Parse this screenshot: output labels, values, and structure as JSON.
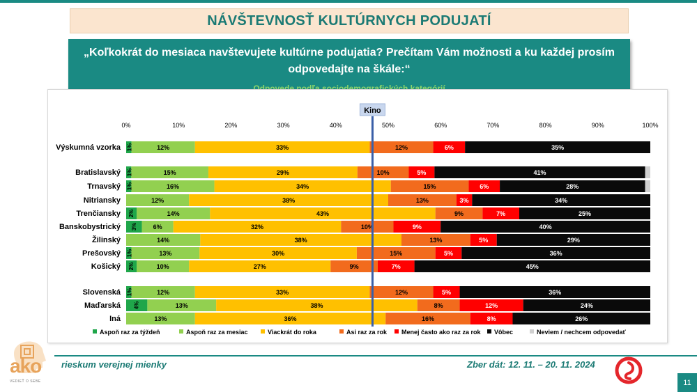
{
  "header": {
    "title": "NÁVŠTEVNOSŤ KULTÚRNYCH PODUJATÍ",
    "question": "„Koľkokrát do mesiaca navštevujete kultúrne podujatia? Prečítam Vám možnosti a ku každej prosím odpovedajte na škále:“",
    "subtitle": "Odpovede podľa sociodemografických kategórií"
  },
  "footer": {
    "left": "rieskum verejnej mienky",
    "right": "Zber dát: 12. 11. – 20. 11. 2024",
    "page": "11",
    "logo_word": "ako",
    "logo_sub": "VEDIEŤ O SEBE"
  },
  "colors": {
    "teal": "#1a8a83",
    "title_bg": "#fbe5cf",
    "reference_line": "#3a5fa8",
    "logo_red": "#e4262b"
  },
  "chart_data": {
    "type": "bar",
    "orientation": "horizontal-stacked-100",
    "title": "Kino",
    "xlim": [
      0,
      100
    ],
    "x_ticks": [
      "0%",
      "10%",
      "20%",
      "30%",
      "40%",
      "50%",
      "60%",
      "70%",
      "80%",
      "90%",
      "100%"
    ],
    "reference_line": 47,
    "legend_position": "bottom",
    "series": [
      {
        "name": "Aspoň raz za týždeň",
        "color": "#1fa64a",
        "label_color": "#000000"
      },
      {
        "name": "Aspoň raz za mesiac",
        "color": "#92d050",
        "label_color": "#000000"
      },
      {
        "name": "Viackrát do roka",
        "color": "#ffc000",
        "label_color": "#000000"
      },
      {
        "name": "Asi raz za rok",
        "color": "#f26b1d",
        "label_color": "#000000"
      },
      {
        "name": "Menej často ako raz za rok",
        "color": "#ff0000",
        "label_color": "#ffffff"
      },
      {
        "name": "Vôbec",
        "color": "#0a0a0a",
        "label_color": "#ffffff"
      },
      {
        "name": "Neviem / nechcem odpovedať",
        "color": "#d0d0d0",
        "label_color": "#000000"
      }
    ],
    "categories": [
      {
        "label": "Výskumná vzorka",
        "values": [
          1,
          12,
          33,
          12,
          6,
          35,
          0
        ],
        "labels": [
          "1%",
          "12%",
          "33%",
          "12%",
          "6%",
          "35%",
          ""
        ]
      },
      {
        "label": "Bratislavský",
        "values": [
          1,
          15,
          29,
          10,
          5,
          41,
          1
        ],
        "labels": [
          "1%",
          "15%",
          "29%",
          "10%",
          "5%",
          "41%",
          ""
        ]
      },
      {
        "label": "Trnavský",
        "values": [
          1,
          16,
          34,
          15,
          6,
          28,
          1
        ],
        "labels": [
          "1%",
          "16%",
          "34%",
          "15%",
          "6%",
          "28%",
          ""
        ]
      },
      {
        "label": "Nitriansky",
        "values": [
          0,
          12,
          38,
          13,
          3,
          34,
          0
        ],
        "labels": [
          "0%",
          "12%",
          "38%",
          "13%",
          "3%",
          "34%",
          ""
        ]
      },
      {
        "label": "Trenčiansky",
        "values": [
          2,
          14,
          43,
          9,
          7,
          25,
          0
        ],
        "labels": [
          "2%",
          "14%",
          "43%",
          "9%",
          "7%",
          "25%",
          ""
        ]
      },
      {
        "label": "Banskobystrický",
        "values": [
          3,
          6,
          32,
          10,
          9,
          40,
          0
        ],
        "labels": [
          "3%",
          "6%",
          "32%",
          "10%",
          "9%",
          "40%",
          ""
        ]
      },
      {
        "label": "Žilinský",
        "values": [
          0,
          14,
          38,
          13,
          5,
          29,
          0
        ],
        "labels": [
          "0%",
          "14%",
          "38%",
          "13%",
          "5%",
          "29%",
          ""
        ]
      },
      {
        "label": "Prešovský",
        "values": [
          1,
          13,
          30,
          15,
          5,
          36,
          0
        ],
        "labels": [
          "1%",
          "13%",
          "30%",
          "15%",
          "5%",
          "36%",
          ""
        ]
      },
      {
        "label": "Košický",
        "values": [
          2,
          10,
          27,
          9,
          7,
          45,
          0
        ],
        "labels": [
          "2%",
          "10%",
          "27%",
          "9%",
          "7%",
          "45%",
          ""
        ]
      },
      {
        "label": "Slovenská",
        "values": [
          1,
          12,
          33,
          12,
          5,
          36,
          0
        ],
        "labels": [
          "1%",
          "12%",
          "33%",
          "12%",
          "5%",
          "36%",
          ""
        ]
      },
      {
        "label": "Maďarská",
        "values": [
          4,
          13,
          38,
          8,
          12,
          24,
          0
        ],
        "labels": [
          "4%",
          "13%",
          "38%",
          "8%",
          "12%",
          "24%",
          ""
        ]
      },
      {
        "label": "Iná",
        "values": [
          0,
          13,
          36,
          16,
          8,
          26,
          0
        ],
        "labels": [
          "",
          "13%",
          "36%",
          "16%",
          "8%",
          "26%",
          ""
        ]
      }
    ]
  }
}
